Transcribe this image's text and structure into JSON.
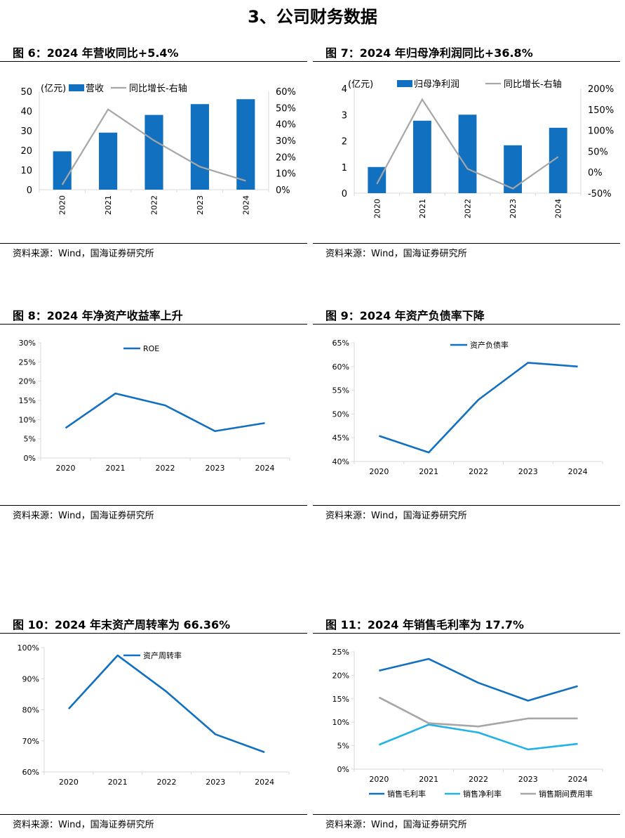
{
  "heading": "3、公司财务数据",
  "source": "资料来源：Wind，国海证券研究所",
  "colors": {
    "blue": "#1170c0",
    "gray": "#a6a6a6",
    "light_blue": "#21b2e6",
    "axis": "#d9d9d9"
  },
  "figures": [
    {
      "title": "图 6：2024 年营收同比+5.4%"
    },
    {
      "title": "图 7：2024 年归母净利润同比+36.8%"
    },
    {
      "title": "图 8：2024 年净资产收益率上升"
    },
    {
      "title": "图 9：2024 年资产负债率下降"
    },
    {
      "title": "图 10：2024 年末资产周转率为 66.36%"
    },
    {
      "title": "图 11：2024 年销售毛利率为 17.7%"
    }
  ],
  "chart_data": [
    {
      "type": "bar",
      "categories": [
        "2020",
        "2021",
        "2022",
        "2023",
        "2024"
      ],
      "unit_label": "(亿元)",
      "series": [
        {
          "name": "营收",
          "type": "bar",
          "axis": "left",
          "values": [
            19.5,
            29,
            38,
            43.5,
            46
          ],
          "color": "#1170c0"
        },
        {
          "name": "同比增长-右轴",
          "type": "line",
          "axis": "right",
          "values": [
            3,
            49,
            30,
            14,
            5.4
          ],
          "color": "#a6a6a6"
        }
      ],
      "ylim": [
        0,
        50
      ],
      "yticks": [
        "0",
        "10",
        "20",
        "30",
        "40",
        "50"
      ],
      "y2lim": [
        0,
        60
      ],
      "y2ticks": [
        "0%",
        "10%",
        "20%",
        "30%",
        "40%",
        "50%",
        "60%"
      ],
      "legend": "top-left"
    },
    {
      "type": "bar",
      "categories": [
        "2020",
        "2021",
        "2022",
        "2023",
        "2024"
      ],
      "unit_label": "(亿元)",
      "series": [
        {
          "name": "归母净利润",
          "type": "bar",
          "axis": "left",
          "values": [
            1.0,
            2.77,
            3.0,
            1.83,
            2.5
          ],
          "color": "#1170c0"
        },
        {
          "name": "同比增长-右轴",
          "type": "line",
          "axis": "right",
          "values": [
            -28,
            174,
            8,
            -39,
            36.8
          ],
          "color": "#a6a6a6"
        }
      ],
      "ylim": [
        0,
        4
      ],
      "yticks": [
        "0",
        "1",
        "2",
        "3",
        "4"
      ],
      "y2lim": [
        -50,
        200
      ],
      "y2ticks": [
        "-50%",
        "0%",
        "50%",
        "100%",
        "150%",
        "200%"
      ],
      "legend": "top"
    },
    {
      "type": "line",
      "categories": [
        "2020",
        "2021",
        "2022",
        "2023",
        "2024"
      ],
      "series": [
        {
          "name": "ROE",
          "values": [
            7.8,
            16.8,
            13.7,
            7.0,
            9.1
          ],
          "color": "#1170c0"
        }
      ],
      "ylim": [
        0,
        30
      ],
      "yticks": [
        "0%",
        "5%",
        "10%",
        "15%",
        "20%",
        "25%",
        "30%"
      ],
      "legend": "top"
    },
    {
      "type": "line",
      "categories": [
        "2020",
        "2021",
        "2022",
        "2023",
        "2024"
      ],
      "series": [
        {
          "name": "资产负债率",
          "values": [
            45.4,
            41.9,
            53.0,
            60.8,
            60.0
          ],
          "color": "#1170c0"
        }
      ],
      "ylim": [
        40,
        65
      ],
      "yticks": [
        "40%",
        "45%",
        "50%",
        "55%",
        "60%",
        "65%"
      ],
      "legend": "top"
    },
    {
      "type": "line",
      "categories": [
        "2020",
        "2021",
        "2022",
        "2023",
        "2024"
      ],
      "series": [
        {
          "name": "资产周转率",
          "values": [
            80.3,
            97.5,
            85.8,
            72.1,
            66.36
          ],
          "color": "#1170c0"
        }
      ],
      "ylim": [
        60,
        100
      ],
      "yticks": [
        "60%",
        "70%",
        "80%",
        "90%",
        "100%"
      ],
      "legend": "top"
    },
    {
      "type": "line",
      "categories": [
        "2020",
        "2021",
        "2022",
        "2023",
        "2024"
      ],
      "series": [
        {
          "name": "销售毛利率",
          "values": [
            21.0,
            23.5,
            18.4,
            14.6,
            17.7
          ],
          "color": "#1170c0"
        },
        {
          "name": "销售净利率",
          "values": [
            5.2,
            9.5,
            7.8,
            4.2,
            5.4
          ],
          "color": "#21b2e6"
        },
        {
          "name": "销售期间费用率",
          "values": [
            15.3,
            9.8,
            9.1,
            10.8,
            10.8
          ],
          "color": "#a6a6a6"
        }
      ],
      "ylim": [
        0,
        25
      ],
      "yticks": [
        "0%",
        "5%",
        "10%",
        "15%",
        "20%",
        "25%"
      ],
      "legend": "bottom"
    }
  ]
}
